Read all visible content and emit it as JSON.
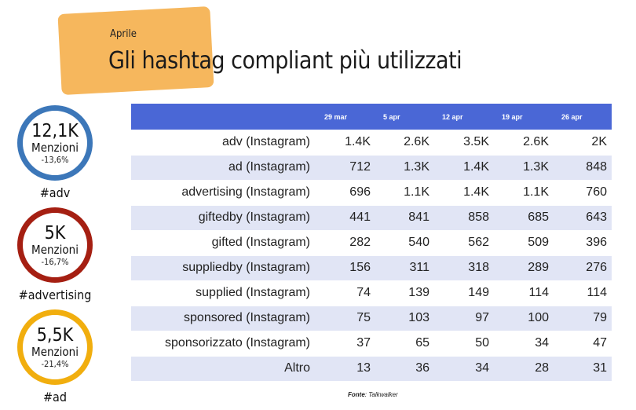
{
  "header": {
    "subtitle": "Aprile",
    "title": "Gli hashtag compliant più utilizzati"
  },
  "kpis": [
    {
      "value": "12,1K",
      "label": "Menzioni",
      "change": "-13,6%",
      "tag": "#adv",
      "color": "#3c77b9"
    },
    {
      "value": "5K",
      "label": "Menzioni",
      "change": "-16,7%",
      "tag": "#advertising",
      "color": "#a51f12"
    },
    {
      "value": "5,5K",
      "label": "Menzioni",
      "change": "-21,4%",
      "tag": "#ad",
      "color": "#f1ae0e"
    }
  ],
  "table": {
    "columns": [
      "",
      "29 mar",
      "5 apr",
      "12 apr",
      "19 apr",
      "26 apr"
    ],
    "rows": [
      {
        "name": "adv (Instagram)",
        "values": [
          "1.4K",
          "2.6K",
          "3.5K",
          "2.6K",
          "2K"
        ]
      },
      {
        "name": "ad (Instagram)",
        "values": [
          "712",
          "1.3K",
          "1.4K",
          "1.3K",
          "848"
        ]
      },
      {
        "name": "advertising (Instagram)",
        "values": [
          "696",
          "1.1K",
          "1.4K",
          "1.1K",
          "760"
        ]
      },
      {
        "name": "giftedby (Instagram)",
        "values": [
          "441",
          "841",
          "858",
          "685",
          "643"
        ]
      },
      {
        "name": "gifted (Instagram)",
        "values": [
          "282",
          "540",
          "562",
          "509",
          "396"
        ]
      },
      {
        "name": "suppliedby (Instagram)",
        "values": [
          "156",
          "311",
          "318",
          "289",
          "276"
        ]
      },
      {
        "name": "supplied (Instagram)",
        "values": [
          "74",
          "139",
          "149",
          "114",
          "114"
        ]
      },
      {
        "name": "sponsored (Instagram)",
        "values": [
          "75",
          "103",
          "97",
          "100",
          "79"
        ]
      },
      {
        "name": "sponsorizzato (Instagram)",
        "values": [
          "37",
          "65",
          "50",
          "34",
          "47"
        ]
      },
      {
        "name": "Altro",
        "values": [
          "13",
          "36",
          "34",
          "28",
          "31"
        ]
      }
    ]
  },
  "source": {
    "label": "Fonte",
    "text": ": Talkwalker"
  },
  "colors": {
    "header_blob": "#f6b75d",
    "table_header": "#4a67d6",
    "row_stripe": "#e1e5f5"
  }
}
